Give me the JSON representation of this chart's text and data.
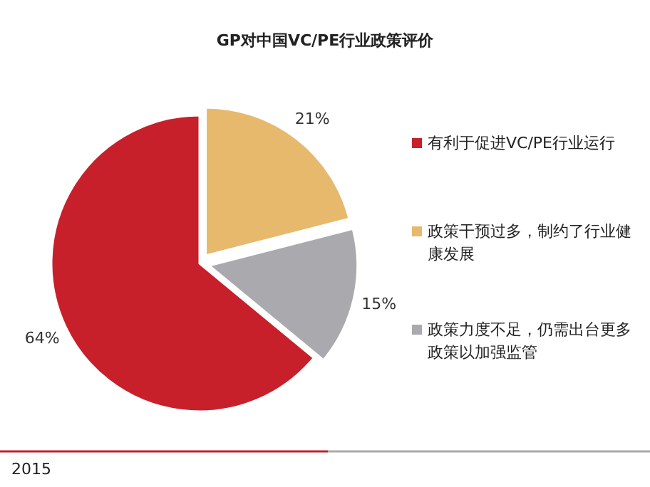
{
  "chart_data": {
    "type": "pie",
    "title": "GP对中国VC/PE行业政策评价",
    "categories": [
      "有利于促进VC/PE行业运行",
      "政策干预过多，制约了行业健康发展",
      "政策力度不足，仍需出台更多政策以加强监管"
    ],
    "values": [
      64,
      21,
      15
    ],
    "colors": [
      "#c8202a",
      "#e6b96c",
      "#a9a9ae"
    ],
    "value_labels": [
      "64%",
      "21%",
      "15%"
    ],
    "legend": "right",
    "annotations": [
      "2015"
    ]
  }
}
